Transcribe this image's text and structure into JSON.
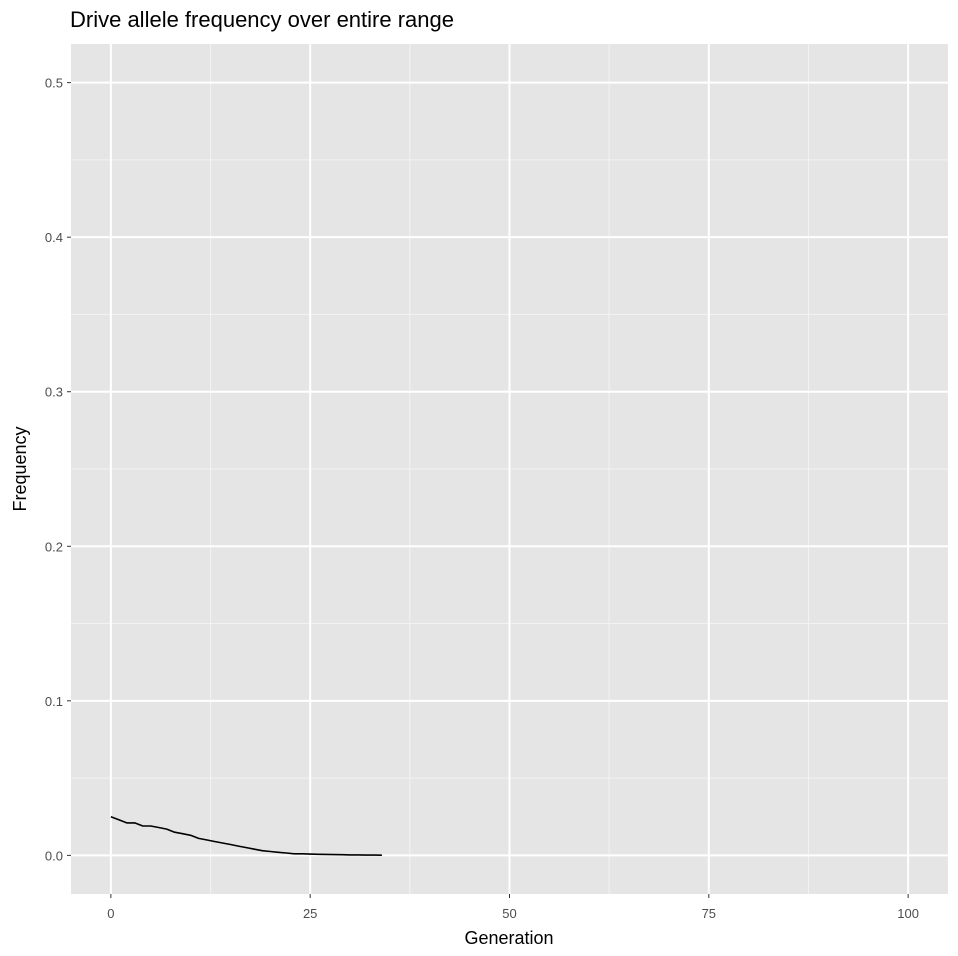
{
  "chart_data": {
    "type": "line",
    "title": "Drive allele frequency over entire range",
    "xlabel": "Generation",
    "ylabel": "Frequency",
    "xlim": [
      -5,
      105
    ],
    "ylim": [
      -0.025,
      0.525
    ],
    "x_ticks": [
      0,
      25,
      50,
      75,
      100
    ],
    "x_tick_labels": [
      "0",
      "25",
      "50",
      "75",
      "100"
    ],
    "y_ticks": [
      0.0,
      0.1,
      0.2,
      0.3,
      0.4,
      0.5
    ],
    "y_tick_labels": [
      "0.0",
      "0.1",
      "0.2",
      "0.3",
      "0.4",
      "0.5"
    ],
    "grid": true,
    "colors": {
      "panel": "#e5e5e5",
      "line": "#000000"
    },
    "series": [
      {
        "x": [
          0,
          1,
          2,
          3,
          4,
          5,
          6,
          7,
          8,
          9,
          10,
          11,
          12,
          13,
          14,
          15,
          16,
          17,
          18,
          19,
          20,
          21,
          22,
          23,
          24,
          25,
          26,
          27,
          28,
          29,
          30,
          31,
          32,
          33,
          34
        ],
        "y": [
          0.025,
          0.023,
          0.021,
          0.021,
          0.019,
          0.019,
          0.018,
          0.017,
          0.015,
          0.014,
          0.013,
          0.011,
          0.01,
          0.009,
          0.008,
          0.007,
          0.006,
          0.005,
          0.004,
          0.003,
          0.0025,
          0.002,
          0.0015,
          0.001,
          0.001,
          0.0008,
          0.0007,
          0.0006,
          0.0005,
          0.0004,
          0.0003,
          0.0003,
          0.0002,
          0.0002,
          0.0001
        ]
      }
    ]
  }
}
